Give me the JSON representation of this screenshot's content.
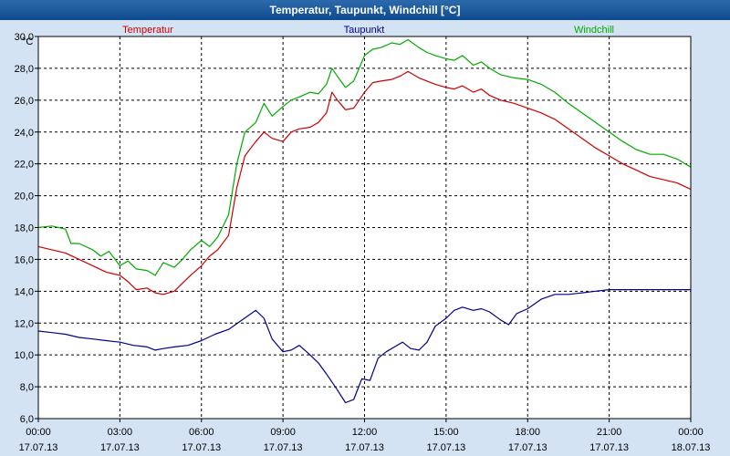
{
  "window": {
    "title": "Temperatur, Taupunkt, Windchill [°C]"
  },
  "colors": {
    "background": "#d4e3f4",
    "plot": "#ffffff",
    "grid": "#000000"
  },
  "chart_data": {
    "type": "line",
    "ylabel": "°C",
    "ylim": [
      6,
      30
    ],
    "yticks": [
      "6,0",
      "8,0",
      "10,0",
      "12,0",
      "14,0",
      "16,0",
      "18,0",
      "20,0",
      "22,0",
      "24,0",
      "26,0",
      "28,0",
      "30,0"
    ],
    "xlim": [
      0,
      24
    ],
    "xticks": [
      {
        "time": "00:00",
        "date": "17.07.13"
      },
      {
        "time": "03:00",
        "date": "17.07.13"
      },
      {
        "time": "06:00",
        "date": "17.07.13"
      },
      {
        "time": "09:00",
        "date": "17.07.13"
      },
      {
        "time": "12:00",
        "date": "17.07.13"
      },
      {
        "time": "15:00",
        "date": "17.07.13"
      },
      {
        "time": "18:00",
        "date": "17.07.13"
      },
      {
        "time": "21:00",
        "date": "17.07.13"
      },
      {
        "time": "00:00",
        "date": "18.07.13"
      }
    ],
    "grid": true,
    "series": [
      {
        "name": "Temperatur",
        "color": "#cc0000",
        "points": [
          [
            0,
            16.8
          ],
          [
            0.5,
            16.6
          ],
          [
            1,
            16.4
          ],
          [
            1.5,
            16.0
          ],
          [
            2,
            15.6
          ],
          [
            2.5,
            15.2
          ],
          [
            3,
            15.0
          ],
          [
            3.3,
            14.6
          ],
          [
            3.6,
            14.1
          ],
          [
            4,
            14.2
          ],
          [
            4.3,
            13.9
          ],
          [
            4.6,
            13.8
          ],
          [
            5,
            14.0
          ],
          [
            5.3,
            14.5
          ],
          [
            5.6,
            15.0
          ],
          [
            6,
            15.6
          ],
          [
            6.3,
            16.2
          ],
          [
            6.6,
            16.6
          ],
          [
            7,
            17.5
          ],
          [
            7.3,
            20.5
          ],
          [
            7.6,
            22.5
          ],
          [
            8,
            23.4
          ],
          [
            8.3,
            24.0
          ],
          [
            8.6,
            23.6
          ],
          [
            9,
            23.4
          ],
          [
            9.3,
            24.0
          ],
          [
            9.6,
            24.2
          ],
          [
            10,
            24.3
          ],
          [
            10.3,
            24.6
          ],
          [
            10.6,
            25.2
          ],
          [
            10.8,
            26.5
          ],
          [
            11,
            26.0
          ],
          [
            11.3,
            25.4
          ],
          [
            11.6,
            25.5
          ],
          [
            12,
            26.5
          ],
          [
            12.3,
            27.1
          ],
          [
            12.6,
            27.2
          ],
          [
            13,
            27.3
          ],
          [
            13.3,
            27.5
          ],
          [
            13.6,
            27.8
          ],
          [
            14,
            27.4
          ],
          [
            14.3,
            27.2
          ],
          [
            14.6,
            27.0
          ],
          [
            15,
            26.8
          ],
          [
            15.3,
            26.7
          ],
          [
            15.6,
            26.9
          ],
          [
            16,
            26.5
          ],
          [
            16.3,
            26.7
          ],
          [
            16.6,
            26.3
          ],
          [
            17,
            26.0
          ],
          [
            17.5,
            25.8
          ],
          [
            18,
            25.5
          ],
          [
            18.5,
            25.2
          ],
          [
            19,
            24.8
          ],
          [
            19.5,
            24.2
          ],
          [
            20,
            23.6
          ],
          [
            20.5,
            23.0
          ],
          [
            21,
            22.5
          ],
          [
            21.5,
            22.0
          ],
          [
            22,
            21.6
          ],
          [
            22.5,
            21.2
          ],
          [
            23,
            21.0
          ],
          [
            23.5,
            20.8
          ],
          [
            24,
            20.4
          ]
        ]
      },
      {
        "name": "Taupunkt",
        "color": "#00008b",
        "points": [
          [
            0,
            11.5
          ],
          [
            0.5,
            11.4
          ],
          [
            1,
            11.3
          ],
          [
            1.5,
            11.1
          ],
          [
            2,
            11.0
          ],
          [
            2.5,
            10.9
          ],
          [
            3,
            10.8
          ],
          [
            3.5,
            10.6
          ],
          [
            4,
            10.5
          ],
          [
            4.3,
            10.3
          ],
          [
            4.6,
            10.4
          ],
          [
            5,
            10.5
          ],
          [
            5.5,
            10.6
          ],
          [
            6,
            10.9
          ],
          [
            6.5,
            11.3
          ],
          [
            7,
            11.6
          ],
          [
            7.5,
            12.2
          ],
          [
            8,
            12.8
          ],
          [
            8.3,
            12.3
          ],
          [
            8.6,
            11.0
          ],
          [
            9,
            10.2
          ],
          [
            9.3,
            10.3
          ],
          [
            9.6,
            10.6
          ],
          [
            10,
            10.0
          ],
          [
            10.3,
            9.5
          ],
          [
            10.6,
            8.8
          ],
          [
            11,
            7.8
          ],
          [
            11.3,
            7.0
          ],
          [
            11.6,
            7.2
          ],
          [
            11.9,
            8.5
          ],
          [
            12.2,
            8.4
          ],
          [
            12.5,
            9.8
          ],
          [
            12.8,
            10.2
          ],
          [
            13.1,
            10.5
          ],
          [
            13.4,
            10.8
          ],
          [
            13.7,
            10.4
          ],
          [
            14,
            10.3
          ],
          [
            14.3,
            10.8
          ],
          [
            14.6,
            11.8
          ],
          [
            15,
            12.3
          ],
          [
            15.3,
            12.8
          ],
          [
            15.6,
            13.0
          ],
          [
            16,
            12.8
          ],
          [
            16.3,
            12.9
          ],
          [
            16.6,
            12.7
          ],
          [
            17,
            12.2
          ],
          [
            17.3,
            11.9
          ],
          [
            17.6,
            12.6
          ],
          [
            18,
            12.9
          ],
          [
            18.5,
            13.5
          ],
          [
            19,
            13.8
          ],
          [
            19.5,
            13.8
          ],
          [
            20,
            13.9
          ],
          [
            20.5,
            14.0
          ],
          [
            21,
            14.1
          ],
          [
            22,
            14.1
          ],
          [
            23,
            14.1
          ],
          [
            24,
            14.1
          ]
        ]
      },
      {
        "name": "Windchill",
        "color": "#00aa00",
        "points": [
          [
            0,
            18.0
          ],
          [
            0.5,
            18.1
          ],
          [
            1,
            17.9
          ],
          [
            1.2,
            17.0
          ],
          [
            1.5,
            17.0
          ],
          [
            2,
            16.6
          ],
          [
            2.3,
            16.2
          ],
          [
            2.6,
            16.5
          ],
          [
            3,
            15.6
          ],
          [
            3.3,
            15.9
          ],
          [
            3.6,
            15.4
          ],
          [
            4,
            15.3
          ],
          [
            4.3,
            15.0
          ],
          [
            4.6,
            15.8
          ],
          [
            5,
            15.5
          ],
          [
            5.3,
            16.0
          ],
          [
            5.6,
            16.6
          ],
          [
            6,
            17.2
          ],
          [
            6.3,
            16.8
          ],
          [
            6.6,
            17.4
          ],
          [
            7,
            18.8
          ],
          [
            7.3,
            22.0
          ],
          [
            7.6,
            24.0
          ],
          [
            8,
            24.6
          ],
          [
            8.3,
            25.8
          ],
          [
            8.6,
            25.0
          ],
          [
            9,
            25.6
          ],
          [
            9.3,
            26.0
          ],
          [
            9.6,
            26.2
          ],
          [
            10,
            26.5
          ],
          [
            10.3,
            26.4
          ],
          [
            10.6,
            27.0
          ],
          [
            10.8,
            28.0
          ],
          [
            11,
            27.5
          ],
          [
            11.3,
            26.8
          ],
          [
            11.6,
            27.2
          ],
          [
            12,
            28.8
          ],
          [
            12.3,
            29.2
          ],
          [
            12.6,
            29.3
          ],
          [
            13,
            29.6
          ],
          [
            13.3,
            29.5
          ],
          [
            13.6,
            29.8
          ],
          [
            14,
            29.3
          ],
          [
            14.3,
            29.0
          ],
          [
            14.6,
            28.8
          ],
          [
            15,
            28.6
          ],
          [
            15.3,
            28.5
          ],
          [
            15.6,
            28.8
          ],
          [
            16,
            28.2
          ],
          [
            16.3,
            28.4
          ],
          [
            16.6,
            28.0
          ],
          [
            17,
            27.6
          ],
          [
            17.5,
            27.4
          ],
          [
            18,
            27.3
          ],
          [
            18.5,
            27.0
          ],
          [
            19,
            26.5
          ],
          [
            19.5,
            25.8
          ],
          [
            20,
            25.2
          ],
          [
            20.5,
            24.6
          ],
          [
            21,
            24.0
          ],
          [
            21.5,
            23.4
          ],
          [
            22,
            22.9
          ],
          [
            22.5,
            22.6
          ],
          [
            23,
            22.6
          ],
          [
            23.5,
            22.3
          ],
          [
            24,
            21.8
          ]
        ]
      }
    ]
  }
}
